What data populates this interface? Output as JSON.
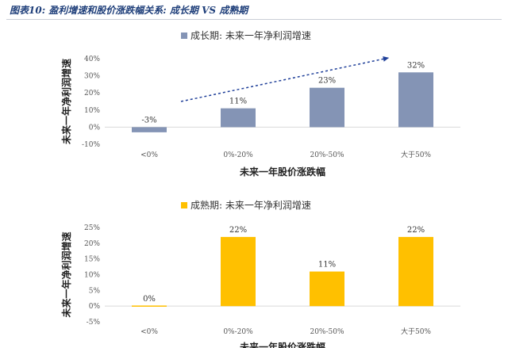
{
  "figure_title": "图表10: 盈利增速和股价涨跌幅关系: 成长期 VS 成熟期",
  "chart_data": [
    {
      "type": "bar",
      "legend": "成长期: 未来一年净利润增速",
      "legend_position": "top",
      "color": "#8494b5",
      "categories": [
        "<0%",
        "0%-20%",
        "20%-50%",
        "大于50%"
      ],
      "values": [
        -3,
        11,
        23,
        32
      ],
      "data_labels": [
        "-3%",
        "11%",
        "23%",
        "32%"
      ],
      "ylim": [
        -10,
        40
      ],
      "yticks": [
        "40%",
        "30%",
        "20%",
        "10%",
        "0%",
        "-10%"
      ],
      "xlabel": "未来一年股价涨跌幅",
      "ylabel": "未来一年净利润增速",
      "trend_arrow": true
    },
    {
      "type": "bar",
      "legend": "成熟期: 未来一年净利润增速",
      "legend_position": "top",
      "color": "#ffc000",
      "categories": [
        "<0%",
        "0%-20%",
        "20%-50%",
        "大于50%"
      ],
      "values": [
        0,
        22,
        11,
        22
      ],
      "data_labels": [
        "0%",
        "22%",
        "11%",
        "22%"
      ],
      "ylim": [
        -5,
        25
      ],
      "yticks": [
        "25%",
        "20%",
        "15%",
        "10%",
        "5%",
        "0%",
        "-5%"
      ],
      "xlabel": "未来一年股价涨跌幅",
      "ylabel": "未来一年净利润增速"
    }
  ]
}
